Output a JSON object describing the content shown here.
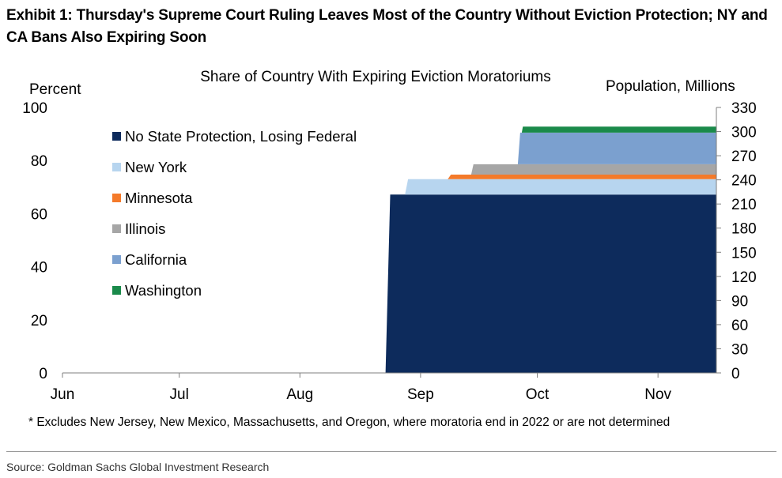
{
  "exhibit_title": "Exhibit 1: Thursday's Supreme Court Ruling Leaves Most of the Country Without Eviction Protection; NY and CA Bans Also Expiring Soon",
  "footnote": "* Excludes New Jersey, New Mexico, Massachusetts, and Oregon, where moratoria end in 2022 or are not determined",
  "source": "Source: Goldman Sachs Global Investment Research",
  "chart_data": {
    "type": "area",
    "title": "Share of Country With Expiring Eviction Moratoriums",
    "ylabel_left": "Percent",
    "ylabel_right": "Population, Millions",
    "ylim_left": [
      0,
      100
    ],
    "ylim_right": [
      0,
      330
    ],
    "left_ticks": [
      "0",
      "20",
      "40",
      "60",
      "80",
      "100"
    ],
    "right_ticks": [
      "0",
      "30",
      "60",
      "90",
      "120",
      "150",
      "180",
      "210",
      "240",
      "270",
      "300",
      "330"
    ],
    "x_ticks": [
      {
        "label": "Jun",
        "day": 0
      },
      {
        "label": "Jul",
        "day": 30
      },
      {
        "label": "Aug",
        "day": 61
      },
      {
        "label": "Sep",
        "day": 92
      },
      {
        "label": "Oct",
        "day": 122
      },
      {
        "label": "Nov",
        "day": 153
      }
    ],
    "x_range_days": [
      0,
      168
    ],
    "series": [
      {
        "name": "No State Protection, Losing Federal",
        "color": "#0d2b5c",
        "start_day": 83,
        "ramp_days": 1.2,
        "value": 67.2
      },
      {
        "name": "New York",
        "color": "#b7d5ef",
        "start_day": 88,
        "ramp_days": 0.8,
        "value": 5.8
      },
      {
        "name": "Minnesota",
        "color": "#f47a2a",
        "start_day": 99,
        "ramp_days": 0.8,
        "value": 1.7
      },
      {
        "name": "Illinois",
        "color": "#a6a6a6",
        "start_day": 105,
        "ramp_days": 0.6,
        "value": 3.9
      },
      {
        "name": "California",
        "color": "#7ba0cf",
        "start_day": 117,
        "ramp_days": 0.6,
        "value": 11.9
      },
      {
        "name": "Washington",
        "color": "#1a8a4a",
        "start_day": 118,
        "ramp_days": 0.3,
        "value": 2.3
      }
    ]
  }
}
